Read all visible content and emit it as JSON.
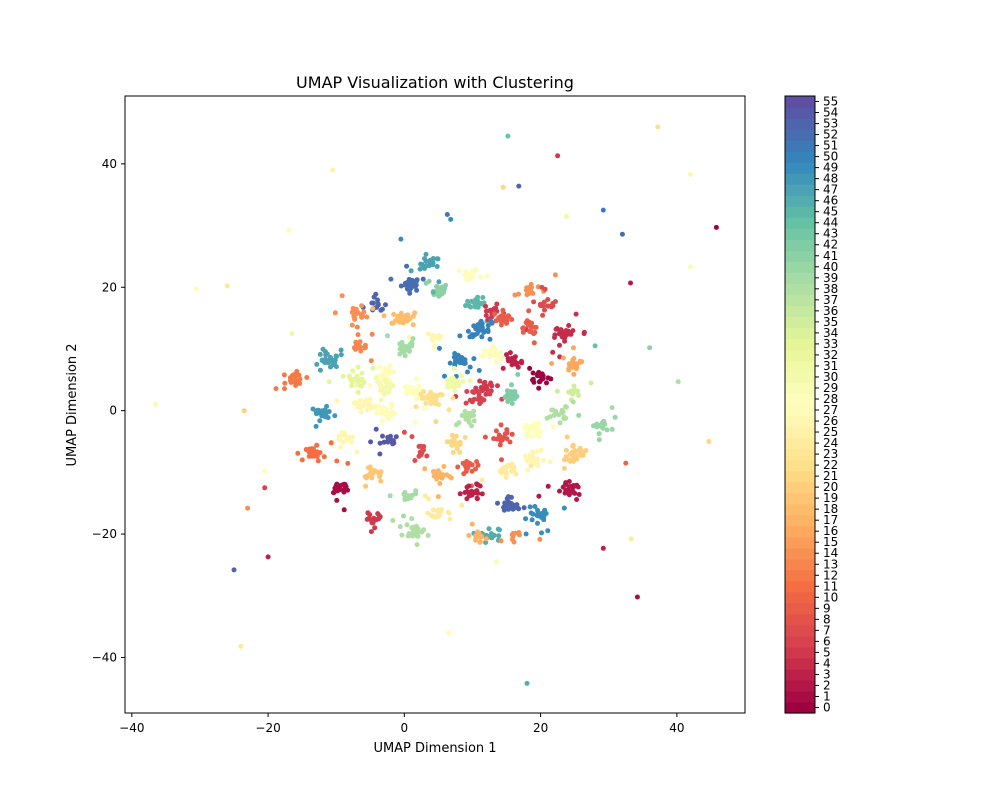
{
  "chart_data": {
    "type": "scatter",
    "title": "UMAP Visualization with Clustering",
    "xlabel": "UMAP Dimension 1",
    "ylabel": "UMAP Dimension 2",
    "xlim": [
      -41,
      50
    ],
    "ylim": [
      -49,
      51
    ],
    "xticks": [
      -40,
      -20,
      0,
      20,
      40
    ],
    "yticks": [
      -40,
      -20,
      0,
      20,
      40
    ],
    "grid": false,
    "colormap": "Spectral",
    "colorbar": {
      "min": 0,
      "max": 55,
      "ticks": [
        0,
        1,
        2,
        3,
        4,
        5,
        6,
        7,
        8,
        9,
        10,
        11,
        12,
        13,
        14,
        15,
        16,
        17,
        18,
        19,
        20,
        21,
        22,
        23,
        24,
        25,
        26,
        27,
        28,
        29,
        30,
        31,
        32,
        33,
        34,
        35,
        36,
        37,
        38,
        39,
        40,
        41,
        42,
        43,
        44,
        45,
        46,
        47,
        48,
        49,
        50,
        51,
        52,
        53,
        54,
        55
      ],
      "tick_labels": [
        "0",
        "1",
        "2",
        "3",
        "4",
        "5",
        "6",
        "7",
        "8",
        "9",
        "10",
        "11",
        "12",
        "13",
        "14",
        "15",
        "16",
        "17",
        "18",
        "19",
        "20",
        "21",
        "22",
        "23",
        "24",
        "25",
        "26",
        "27",
        "28",
        "29",
        "30",
        "31",
        "32",
        "33",
        "34",
        "35",
        "36",
        "37",
        "38",
        "39",
        "40",
        "41",
        "42",
        "43",
        "44",
        "45",
        "46",
        "47",
        "48",
        "49",
        "50",
        "51",
        "52",
        "53",
        "54",
        "55"
      ]
    },
    "clusters": [
      {
        "cluster": 52,
        "x": 1.0,
        "y": 20.5,
        "n": 28
      },
      {
        "cluster": 47,
        "x": 3.8,
        "y": 23.8,
        "n": 22
      },
      {
        "cluster": 28,
        "x": 9.5,
        "y": 22.0,
        "n": 14
      },
      {
        "cluster": 53,
        "x": -4.0,
        "y": 17.0,
        "n": 14
      },
      {
        "cluster": 14,
        "x": -7.0,
        "y": 15.5,
        "n": 22
      },
      {
        "cluster": 18,
        "x": -0.5,
        "y": 15.0,
        "n": 26
      },
      {
        "cluster": 41,
        "x": 5.0,
        "y": 19.5,
        "n": 28
      },
      {
        "cluster": 45,
        "x": 10.5,
        "y": 17.5,
        "n": 26
      },
      {
        "cluster": 5,
        "x": 13.0,
        "y": 16.0,
        "n": 20
      },
      {
        "cluster": 9,
        "x": 14.5,
        "y": 15.0,
        "n": 22
      },
      {
        "cluster": 14,
        "x": 18.5,
        "y": 19.5,
        "n": 18
      },
      {
        "cluster": 7,
        "x": 21.0,
        "y": 17.5,
        "n": 16
      },
      {
        "cluster": 4,
        "x": 23.5,
        "y": 12.5,
        "n": 34
      },
      {
        "cluster": 9,
        "x": 18.5,
        "y": 13.5,
        "n": 18
      },
      {
        "cluster": 50,
        "x": 11.0,
        "y": 13.0,
        "n": 32
      },
      {
        "cluster": 26,
        "x": 4.5,
        "y": 12.0,
        "n": 20
      },
      {
        "cluster": 13,
        "x": -6.5,
        "y": 10.5,
        "n": 22
      },
      {
        "cluster": 39,
        "x": 0.0,
        "y": 10.0,
        "n": 24
      },
      {
        "cluster": 47,
        "x": -11.0,
        "y": 8.0,
        "n": 30
      },
      {
        "cluster": 12,
        "x": -16.0,
        "y": 5.0,
        "n": 22
      },
      {
        "cluster": 33,
        "x": -7.0,
        "y": 5.0,
        "n": 28
      },
      {
        "cluster": 27,
        "x": -2.5,
        "y": 6.0,
        "n": 22
      },
      {
        "cluster": 30,
        "x": -3.0,
        "y": 4.0,
        "n": 22
      },
      {
        "cluster": 50,
        "x": 8.0,
        "y": 8.0,
        "n": 30
      },
      {
        "cluster": 31,
        "x": 7.0,
        "y": 4.5,
        "n": 26
      },
      {
        "cluster": 27,
        "x": 13.0,
        "y": 9.0,
        "n": 26
      },
      {
        "cluster": 3,
        "x": 16.0,
        "y": 8.0,
        "n": 22
      },
      {
        "cluster": 0,
        "x": 20.0,
        "y": 5.5,
        "n": 20
      },
      {
        "cluster": 16,
        "x": 25.0,
        "y": 7.5,
        "n": 24
      },
      {
        "cluster": 35,
        "x": 24.5,
        "y": 3.0,
        "n": 14
      },
      {
        "cluster": 5,
        "x": 12.0,
        "y": 4.0,
        "n": 20
      },
      {
        "cluster": 6,
        "x": 11.0,
        "y": 2.5,
        "n": 18
      },
      {
        "cluster": 42,
        "x": 15.5,
        "y": 2.5,
        "n": 28
      },
      {
        "cluster": 28,
        "x": 1.0,
        "y": 3.0,
        "n": 26
      },
      {
        "cluster": 22,
        "x": 4.0,
        "y": 2.0,
        "n": 30
      },
      {
        "cluster": 26,
        "x": -6.0,
        "y": 1.0,
        "n": 26
      },
      {
        "cluster": 48,
        "x": -12.0,
        "y": -0.5,
        "n": 22
      },
      {
        "cluster": 27,
        "x": -2.5,
        "y": -0.5,
        "n": 26
      },
      {
        "cluster": 38,
        "x": 9.5,
        "y": -1.0,
        "n": 22
      },
      {
        "cluster": 38,
        "x": 22.5,
        "y": -0.5,
        "n": 18
      },
      {
        "cluster": 40,
        "x": 29.0,
        "y": -2.5,
        "n": 16
      },
      {
        "cluster": 28,
        "x": 19.0,
        "y": -3.0,
        "n": 24
      },
      {
        "cluster": 8,
        "x": 14.0,
        "y": -4.5,
        "n": 22
      },
      {
        "cluster": 21,
        "x": 7.5,
        "y": -5.0,
        "n": 22
      },
      {
        "cluster": 26,
        "x": -9.0,
        "y": -4.5,
        "n": 18
      },
      {
        "cluster": 54,
        "x": -2.0,
        "y": -5.0,
        "n": 18
      },
      {
        "cluster": 7,
        "x": 2.5,
        "y": -6.5,
        "n": 14
      },
      {
        "cluster": 11,
        "x": -13.0,
        "y": -7.0,
        "n": 30
      },
      {
        "cluster": 20,
        "x": 25.0,
        "y": -7.0,
        "n": 26
      },
      {
        "cluster": 26,
        "x": 19.0,
        "y": -8.0,
        "n": 26
      },
      {
        "cluster": 9,
        "x": 9.5,
        "y": -9.0,
        "n": 22
      },
      {
        "cluster": 24,
        "x": 15.0,
        "y": -9.5,
        "n": 22
      },
      {
        "cluster": 19,
        "x": -4.5,
        "y": -10.5,
        "n": 18
      },
      {
        "cluster": 17,
        "x": 5.0,
        "y": -10.5,
        "n": 22
      },
      {
        "cluster": 1,
        "x": -9.5,
        "y": -12.5,
        "n": 26
      },
      {
        "cluster": 2,
        "x": 24.5,
        "y": -13.0,
        "n": 26
      },
      {
        "cluster": 3,
        "x": 10.0,
        "y": -13.5,
        "n": 22
      },
      {
        "cluster": 39,
        "x": 0.5,
        "y": -14.0,
        "n": 16
      },
      {
        "cluster": 53,
        "x": 15.5,
        "y": -15.5,
        "n": 30
      },
      {
        "cluster": 24,
        "x": 5.0,
        "y": -16.5,
        "n": 22
      },
      {
        "cluster": 49,
        "x": 19.5,
        "y": -17.0,
        "n": 22
      },
      {
        "cluster": 5,
        "x": -4.5,
        "y": -17.5,
        "n": 18
      },
      {
        "cluster": 38,
        "x": 1.5,
        "y": -19.5,
        "n": 26
      },
      {
        "cluster": 46,
        "x": 12.5,
        "y": -20.0,
        "n": 18
      },
      {
        "cluster": 17,
        "x": 11.0,
        "y": -20.5,
        "n": 14
      },
      {
        "cluster": 14,
        "x": 16.0,
        "y": -20.0,
        "n": 10
      }
    ],
    "outliers": [
      {
        "cluster": 44,
        "x": 15.2,
        "y": 44.5
      },
      {
        "cluster": 5,
        "x": 22.5,
        "y": 41.3
      },
      {
        "cluster": 22,
        "x": 37.2,
        "y": 46.0
      },
      {
        "cluster": 25,
        "x": -10.5,
        "y": 39.0
      },
      {
        "cluster": 21,
        "x": 14.5,
        "y": 36.2
      },
      {
        "cluster": 53,
        "x": 16.8,
        "y": 36.4
      },
      {
        "cluster": 26,
        "x": 42.0,
        "y": 38.3
      },
      {
        "cluster": 51,
        "x": 29.2,
        "y": 32.5
      },
      {
        "cluster": 51,
        "x": 6.3,
        "y": 31.8
      },
      {
        "cluster": 49,
        "x": 6.8,
        "y": 31.0
      },
      {
        "cluster": 31,
        "x": 23.8,
        "y": 31.5
      },
      {
        "cluster": 0,
        "x": 45.8,
        "y": 29.7
      },
      {
        "cluster": 27,
        "x": -17.0,
        "y": 29.2
      },
      {
        "cluster": 52,
        "x": 32.0,
        "y": 28.6
      },
      {
        "cluster": 49,
        "x": -0.5,
        "y": 27.8
      },
      {
        "cluster": 29,
        "x": 42.0,
        "y": 23.3
      },
      {
        "cluster": 2,
        "x": 33.2,
        "y": 20.7
      },
      {
        "cluster": 27,
        "x": -30.5,
        "y": 19.8
      },
      {
        "cluster": 23,
        "x": -26.0,
        "y": 20.2
      },
      {
        "cluster": 41,
        "x": 36.0,
        "y": 10.2
      },
      {
        "cluster": 38,
        "x": 40.2,
        "y": 4.7
      },
      {
        "cluster": 26,
        "x": -36.5,
        "y": 1.0
      },
      {
        "cluster": 20,
        "x": -23.5,
        "y": 0.0
      },
      {
        "cluster": 21,
        "x": 44.7,
        "y": -5.0
      },
      {
        "cluster": 10,
        "x": 32.5,
        "y": -8.5
      },
      {
        "cluster": 28,
        "x": -20.5,
        "y": -9.8
      },
      {
        "cluster": 6,
        "x": -20.5,
        "y": -12.5
      },
      {
        "cluster": 14,
        "x": -23.0,
        "y": -15.8
      },
      {
        "cluster": 24,
        "x": 33.3,
        "y": -20.8
      },
      {
        "cluster": 3,
        "x": 29.2,
        "y": -22.3
      },
      {
        "cluster": 3,
        "x": -20.0,
        "y": -23.7
      },
      {
        "cluster": 53,
        "x": -25.0,
        "y": -25.8
      },
      {
        "cluster": 1,
        "x": 34.2,
        "y": -30.2
      },
      {
        "cluster": 27,
        "x": 6.5,
        "y": -36.0
      },
      {
        "cluster": 24,
        "x": -24.0,
        "y": -38.2
      },
      {
        "cluster": 46,
        "x": 18.0,
        "y": -44.2
      },
      {
        "cluster": 29,
        "x": 13.5,
        "y": -24.5
      },
      {
        "cluster": 31,
        "x": -16.5,
        "y": 12.5
      },
      {
        "cluster": 44,
        "x": 28.0,
        "y": 10.5
      },
      {
        "cluster": 39,
        "x": 30.5,
        "y": 0.5
      }
    ]
  }
}
